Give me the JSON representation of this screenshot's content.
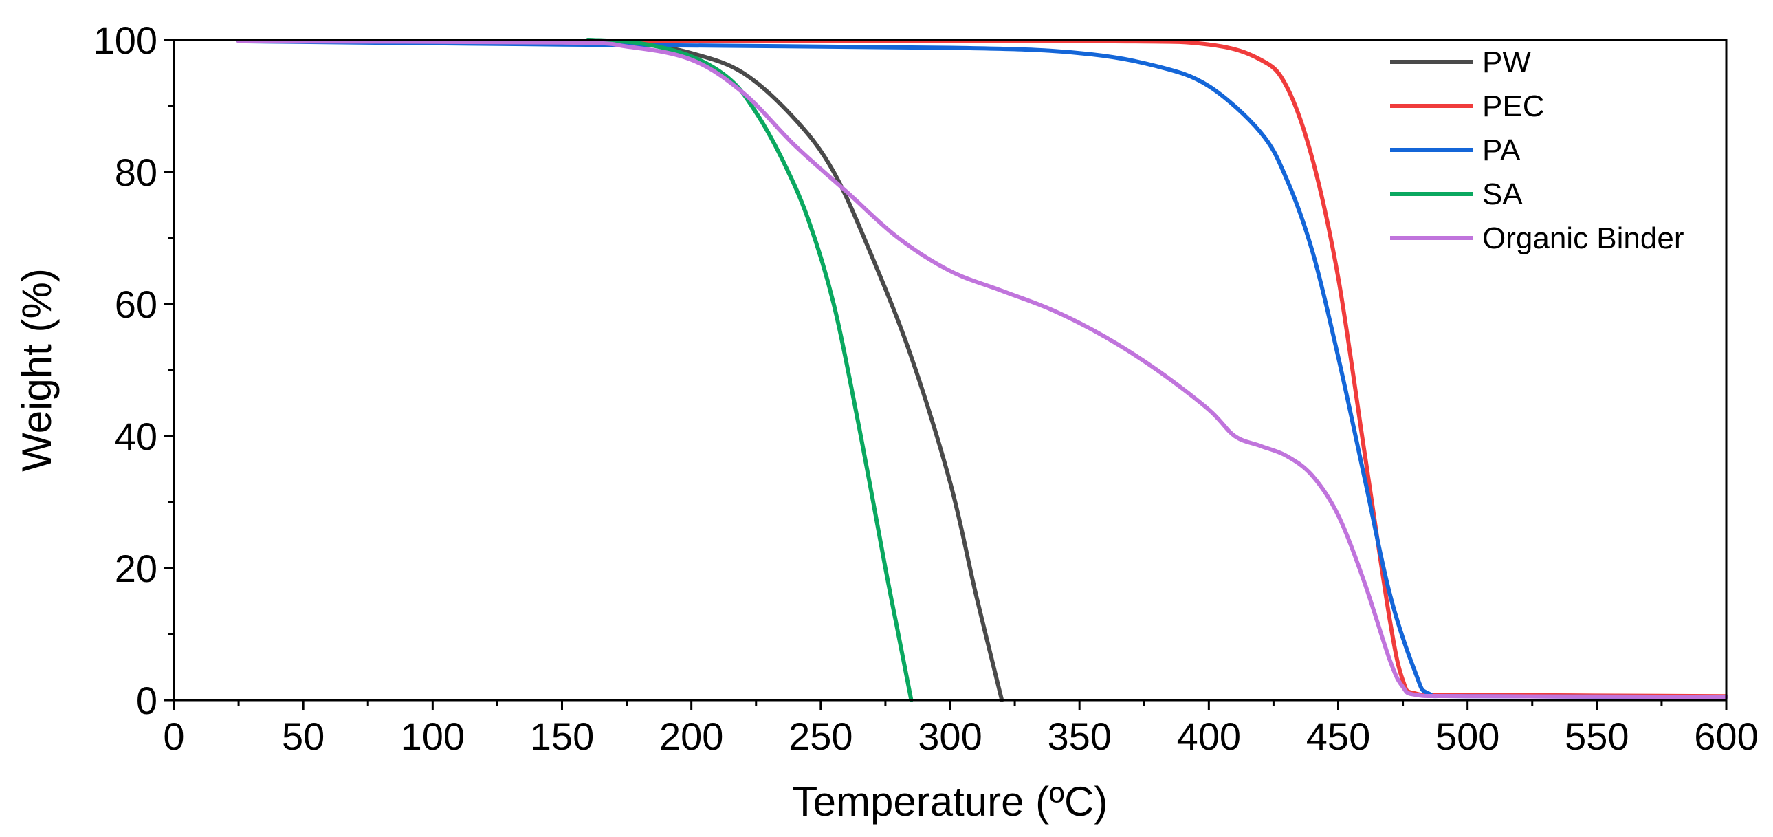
{
  "chart_data": {
    "type": "line",
    "title": "",
    "xlabel": "Temperature (ºC)",
    "ylabel": "Weight (%)",
    "xlim": [
      0,
      600
    ],
    "ylim": [
      0,
      100
    ],
    "xticks": [
      0,
      50,
      100,
      150,
      200,
      250,
      300,
      350,
      400,
      450,
      500,
      550,
      600
    ],
    "yticks": [
      0,
      20,
      40,
      60,
      80,
      100
    ],
    "grid": false,
    "legend_position": "top-right",
    "series": [
      {
        "name": "PW",
        "color": "#4a4a4a",
        "x": [
          160,
          180,
          200,
          220,
          240,
          255,
          270,
          285,
          300,
          310,
          320
        ],
        "y": [
          100,
          99.5,
          98,
          95,
          88,
          80,
          67,
          52,
          33,
          16,
          0
        ]
      },
      {
        "name": "PEC",
        "color": "#f03c3c",
        "x": [
          25,
          200,
          360,
          400,
          420,
          430,
          440,
          450,
          460,
          470,
          475,
          480,
          500,
          600
        ],
        "y": [
          99.8,
          99.8,
          99.8,
          99.3,
          97,
          93,
          82,
          64,
          38,
          12,
          3,
          1,
          0.8,
          0.6
        ]
      },
      {
        "name": "PA",
        "color": "#1466d8",
        "x": [
          25,
          150,
          300,
          350,
          380,
          400,
          420,
          430,
          440,
          450,
          460,
          470,
          480,
          485,
          500,
          600
        ],
        "y": [
          99.8,
          99.3,
          98.8,
          98,
          96,
          93,
          86,
          79,
          68,
          52,
          34,
          16,
          4,
          1,
          0.6,
          0.5
        ]
      },
      {
        "name": "SA",
        "color": "#0aa860",
        "x": [
          160,
          180,
          200,
          215,
          225,
          235,
          245,
          255,
          265,
          275,
          280,
          285
        ],
        "y": [
          100,
          99.5,
          97.5,
          94,
          89,
          82,
          73,
          60,
          41,
          20,
          10,
          0
        ]
      },
      {
        "name": "Organic Binder",
        "color": "#c074dc",
        "x": [
          25,
          150,
          175,
          200,
          220,
          240,
          260,
          280,
          300,
          320,
          340,
          360,
          380,
          400,
          410,
          420,
          430,
          440,
          450,
          460,
          470,
          475,
          480,
          500,
          600
        ],
        "y": [
          99.8,
          99.6,
          99,
          97,
          92,
          84,
          77,
          70,
          65,
          62,
          59,
          55,
          50,
          44,
          40,
          38.5,
          37,
          34,
          28,
          18,
          6,
          2,
          0.8,
          0.6,
          0.5
        ]
      }
    ]
  }
}
